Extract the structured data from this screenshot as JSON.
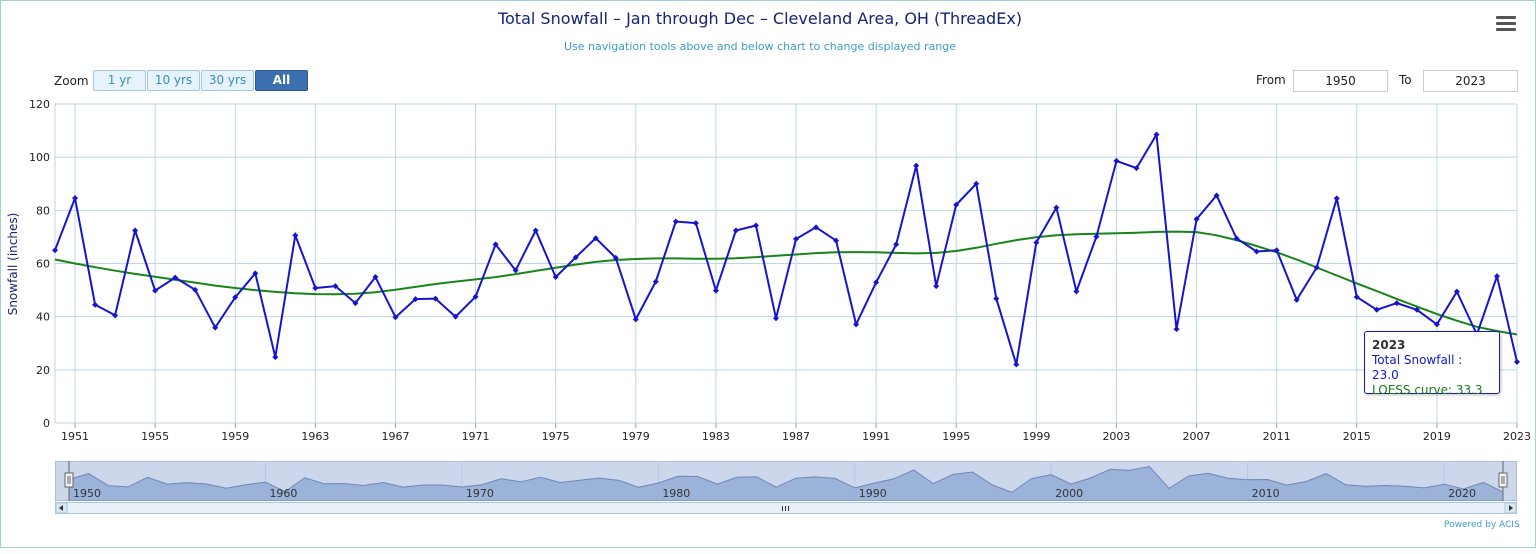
{
  "header": {
    "title": "Total Snowfall – Jan through Dec – Cleveland Area, OH (ThreadEx)",
    "subtitle": "Use navigation tools above and below chart to change displayed range",
    "menu_icon": "hamburger-menu-icon"
  },
  "zoom": {
    "label": "Zoom",
    "buttons": [
      {
        "label": "1 yr",
        "active": false
      },
      {
        "label": "10 yrs",
        "active": false
      },
      {
        "label": "30 yrs",
        "active": false
      },
      {
        "label": "All",
        "active": true
      }
    ]
  },
  "range": {
    "from_label": "From",
    "from_value": "1950",
    "to_label": "To",
    "to_value": "2023"
  },
  "tooltip": {
    "year": "2023",
    "snow": "Total Snowfall : 23.0",
    "loess": "LOESS curve: 33.3"
  },
  "credit": "Powered by ACIS",
  "colors": {
    "snow_line": "#1515d0",
    "loess_line": "#178517",
    "grid": "#b8d8ea",
    "navigator_fill": "#9bb2d9",
    "navigator_mask": "#ccd7ec"
  },
  "chart_data": {
    "type": "line",
    "ylabel": "Snowfall (inches)",
    "ylim": [
      0,
      120
    ],
    "yticks": [
      0,
      20,
      40,
      60,
      80,
      100,
      120
    ],
    "xlim": [
      1950,
      2023
    ],
    "xticks": [
      1951,
      1955,
      1959,
      1963,
      1967,
      1971,
      1975,
      1979,
      1983,
      1987,
      1991,
      1995,
      1999,
      2003,
      2007,
      2011,
      2015,
      2019,
      2023
    ],
    "grid": true,
    "x": [
      1950,
      1951,
      1952,
      1953,
      1954,
      1955,
      1956,
      1957,
      1958,
      1959,
      1960,
      1961,
      1962,
      1963,
      1964,
      1965,
      1966,
      1967,
      1968,
      1969,
      1970,
      1971,
      1972,
      1973,
      1974,
      1975,
      1976,
      1977,
      1978,
      1979,
      1980,
      1981,
      1982,
      1983,
      1984,
      1985,
      1986,
      1987,
      1988,
      1989,
      1990,
      1991,
      1992,
      1993,
      1994,
      1995,
      1996,
      1997,
      1998,
      1999,
      2000,
      2001,
      2002,
      2003,
      2004,
      2005,
      2006,
      2007,
      2008,
      2009,
      2010,
      2011,
      2012,
      2013,
      2014,
      2015,
      2016,
      2017,
      2018,
      2019,
      2020,
      2021,
      2022,
      2023
    ],
    "series": [
      {
        "name": "Total Snowfall",
        "values": [
          65.0,
          84.6,
          44.5,
          40.5,
          72.4,
          49.8,
          54.7,
          50.1,
          35.9,
          47.3,
          56.3,
          24.8,
          70.6,
          50.8,
          51.5,
          45.1,
          54.9,
          39.8,
          46.6,
          46.8,
          40.0,
          47.5,
          67.2,
          57.4,
          72.4,
          54.9,
          62.3,
          69.5,
          62.1,
          39.0,
          53.2,
          75.8,
          75.2,
          49.8,
          72.4,
          74.3,
          39.4,
          69.2,
          73.6,
          68.6,
          37.1,
          52.9,
          67.2,
          96.8,
          51.5,
          82.1,
          90.0,
          46.8,
          22.0,
          67.9,
          81.0,
          49.5,
          70.1,
          98.6,
          95.9,
          108.5,
          35.3,
          76.7,
          85.6,
          69.4,
          64.5,
          65.0,
          46.3,
          58.5,
          84.5,
          47.4,
          42.6,
          45.1,
          42.6,
          37.1,
          49.4,
          33.3,
          55.2,
          23.0
        ]
      },
      {
        "name": "LOESS curve",
        "values": [
          61.5,
          60.0,
          58.6,
          57.3,
          56.1,
          55.0,
          53.9,
          52.8,
          51.7,
          50.8,
          50.0,
          49.3,
          48.8,
          48.5,
          48.4,
          48.6,
          49.2,
          50.1,
          51.2,
          52.3,
          53.2,
          54.0,
          54.9,
          56.0,
          57.2,
          58.4,
          59.6,
          60.6,
          61.3,
          61.7,
          61.9,
          61.9,
          61.8,
          61.8,
          62.0,
          62.4,
          62.9,
          63.4,
          63.9,
          64.2,
          64.3,
          64.2,
          64.0,
          63.8,
          64.0,
          64.7,
          65.9,
          67.4,
          68.8,
          69.9,
          70.6,
          71.0,
          71.2,
          71.4,
          71.6,
          71.9,
          72.0,
          71.8,
          70.6,
          68.8,
          66.6,
          64.2,
          61.5,
          58.5,
          55.5,
          52.5,
          49.6,
          46.7,
          43.8,
          41.0,
          38.5,
          36.2,
          34.6,
          33.3
        ]
      }
    ],
    "navigator": {
      "xticks": [
        1950,
        1960,
        1970,
        1980,
        1990,
        2000,
        2010,
        2020
      ]
    }
  }
}
